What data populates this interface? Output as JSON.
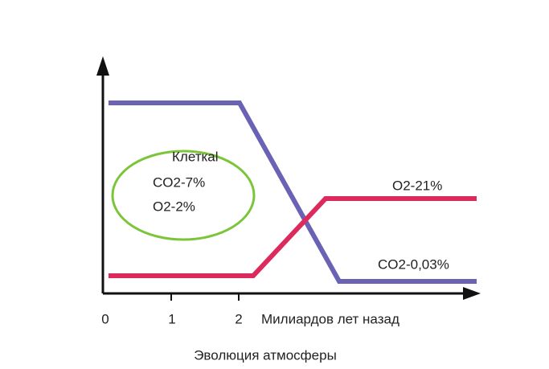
{
  "title": "Эволюция атмосферы",
  "x_axis": {
    "label": "Милиардов лет назад",
    "ticks": [
      "0",
      "1",
      "2"
    ]
  },
  "cell": {
    "lines": [
      "Клеткаl",
      "CO2-7%",
      "O2-2%"
    ]
  },
  "annotations": [
    "O2-21%",
    "CO2-0,03%"
  ]
}
